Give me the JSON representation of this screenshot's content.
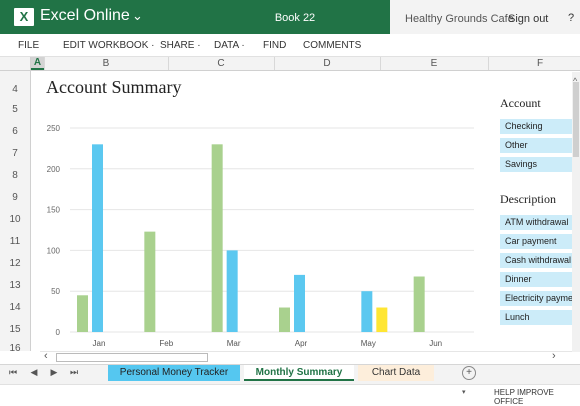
{
  "header": {
    "logo_letter": "X",
    "app_title": "Excel Online",
    "chevron": "⌄",
    "book_title": "Book 22",
    "company": "Healthy Grounds Cafe",
    "sign_out": "Sign out",
    "help": "?"
  },
  "menu": [
    {
      "label": "FILE"
    },
    {
      "label": "EDIT WORKBOOK ·"
    },
    {
      "label": "SHARE ·"
    },
    {
      "label": "DATA ·"
    },
    {
      "label": "FIND"
    },
    {
      "label": "COMMENTS"
    }
  ],
  "columns": [
    "A",
    "B",
    "C",
    "D",
    "E",
    "F"
  ],
  "rows": [
    "4",
    "5",
    "6",
    "7",
    "8",
    "9",
    "10",
    "11",
    "12",
    "13",
    "14",
    "15",
    "16"
  ],
  "sheet": {
    "title": "Account Summary",
    "account_heading": "Account",
    "accounts": [
      "Checking",
      "Other",
      "Savings"
    ],
    "description_heading": "Description",
    "descriptions": [
      "ATM withdrawal",
      "Car payment",
      "Cash withdrawal",
      "Dinner",
      "Electricity payment",
      "Lunch"
    ]
  },
  "chart_data": {
    "type": "bar",
    "categories": [
      "Jan",
      "Feb",
      "Mar",
      "Apr",
      "May",
      "Jun"
    ],
    "series": [
      {
        "color": "#a9d18e",
        "values": [
          45,
          123,
          230,
          30,
          0,
          68
        ]
      },
      {
        "color": "#5bc8f0",
        "values": [
          230,
          0,
          100,
          70,
          50,
          0
        ]
      },
      {
        "color": "#ffe633",
        "values": [
          0,
          0,
          0,
          0,
          30,
          0
        ]
      }
    ],
    "ylim": [
      0,
      250
    ],
    "yticks": [
      0,
      50,
      100,
      150,
      200,
      250
    ],
    "grid": true,
    "title": "",
    "xlabel": "",
    "ylabel": ""
  },
  "tabs": [
    {
      "label": "Personal Money Tracker",
      "color": "#55c7f0"
    },
    {
      "label": "Monthly Summary",
      "active": true
    },
    {
      "label": "Chart Data",
      "color": "#fdeedb"
    }
  ],
  "tab_nav": [
    "⏮",
    "◀",
    "▶",
    "⏭"
  ],
  "add_sheet": "+",
  "status": {
    "caret": "▾",
    "text": "HELP IMPROVE OFFICE"
  },
  "scroll": {
    "left_arrow": "‹",
    "right_arrow": "›",
    "up_arrow": "^"
  }
}
